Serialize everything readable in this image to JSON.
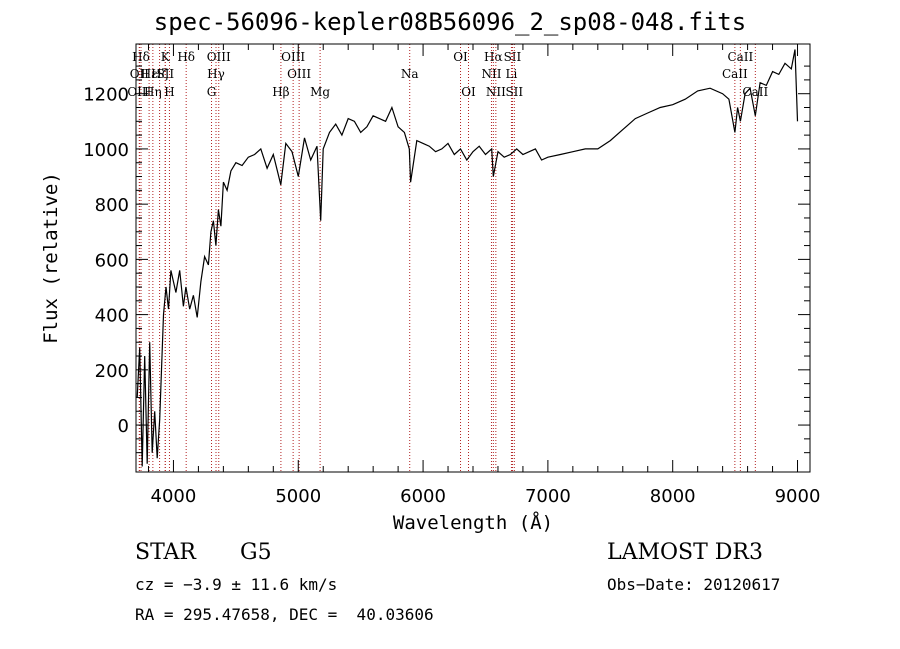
{
  "chart_data": {
    "type": "line",
    "title": "spec-56096-kepler08B56096_2_sp08-048.fits",
    "xlabel": "Wavelength (Å)",
    "ylabel": "Flux (relative)",
    "xlim": [
      3700,
      9100
    ],
    "ylim": [
      -170,
      1380
    ],
    "xticks": [
      4000,
      5000,
      6000,
      7000,
      8000,
      9000
    ],
    "yticks": [
      0,
      200,
      400,
      600,
      800,
      1000,
      1200
    ],
    "series": [
      {
        "name": "flux",
        "x": [
          3710,
          3730,
          3750,
          3770,
          3790,
          3810,
          3830,
          3850,
          3870,
          3890,
          3900,
          3920,
          3940,
          3960,
          3980,
          4000,
          4020,
          4050,
          4080,
          4100,
          4130,
          4160,
          4190,
          4220,
          4250,
          4280,
          4300,
          4320,
          4340,
          4360,
          4380,
          4400,
          4430,
          4460,
          4500,
          4550,
          4600,
          4650,
          4700,
          4750,
          4800,
          4860,
          4900,
          4950,
          5000,
          5050,
          5100,
          5150,
          5180,
          5200,
          5250,
          5300,
          5350,
          5400,
          5450,
          5500,
          5550,
          5600,
          5650,
          5700,
          5750,
          5800,
          5850,
          5890,
          5900,
          5950,
          6000,
          6050,
          6100,
          6150,
          6200,
          6250,
          6300,
          6350,
          6400,
          6450,
          6500,
          6550,
          6563,
          6600,
          6650,
          6700,
          6750,
          6800,
          6850,
          6900,
          6950,
          7000,
          7100,
          7200,
          7300,
          7400,
          7500,
          7600,
          7700,
          7800,
          7900,
          8000,
          8100,
          8200,
          8300,
          8400,
          8450,
          8498,
          8520,
          8542,
          8580,
          8620,
          8662,
          8700,
          8750,
          8800,
          8850,
          8900,
          8950,
          8980,
          9000
        ],
        "values": [
          100,
          280,
          -150,
          250,
          -140,
          300,
          -100,
          50,
          -120,
          20,
          150,
          400,
          500,
          420,
          560,
          520,
          480,
          560,
          430,
          500,
          420,
          470,
          390,
          520,
          610,
          580,
          700,
          740,
          650,
          780,
          720,
          880,
          850,
          920,
          950,
          940,
          970,
          980,
          1000,
          930,
          980,
          870,
          1020,
          990,
          900,
          1040,
          960,
          1010,
          740,
          1000,
          1060,
          1090,
          1050,
          1110,
          1100,
          1060,
          1080,
          1120,
          1110,
          1100,
          1150,
          1080,
          1060,
          1000,
          880,
          1030,
          1020,
          1010,
          990,
          1000,
          1020,
          980,
          1000,
          960,
          990,
          1010,
          980,
          1000,
          900,
          990,
          970,
          980,
          1000,
          980,
          990,
          1000,
          960,
          970,
          980,
          990,
          1000,
          1000,
          1030,
          1070,
          1110,
          1130,
          1150,
          1160,
          1180,
          1210,
          1220,
          1200,
          1180,
          1060,
          1150,
          1100,
          1200,
          1220,
          1120,
          1240,
          1230,
          1280,
          1270,
          1310,
          1290,
          1360,
          1100
        ]
      }
    ],
    "lines": [
      {
        "label": "Hδ",
        "x": 3740,
        "row": 1
      },
      {
        "label": "OII",
        "x": 3727,
        "row": 2
      },
      {
        "label": "OIII",
        "x": 3727,
        "row": 3
      },
      {
        "label": "Hε",
        "x": 3805,
        "row": 2
      },
      {
        "label": "Hη",
        "x": 3835,
        "row": 3
      },
      {
        "label": "K",
        "x": 3934,
        "row": 1
      },
      {
        "label": "Hζ",
        "x": 3889,
        "row": 2
      },
      {
        "label": "SII",
        "x": 3935,
        "row": 2
      },
      {
        "label": "H",
        "x": 3968,
        "row": 3
      },
      {
        "label": "Hδ",
        "x": 4102,
        "row": 1
      },
      {
        "label": "OIII",
        "x": 4363,
        "row": 1
      },
      {
        "label": "Hγ",
        "x": 4341,
        "row": 2
      },
      {
        "label": "G",
        "x": 4305,
        "row": 3
      },
      {
        "label": "Hβ",
        "x": 4861,
        "row": 3
      },
      {
        "label": "OIII",
        "x": 4959,
        "row": 1
      },
      {
        "label": "OIII",
        "x": 5007,
        "row": 2
      },
      {
        "label": "Mg",
        "x": 5175,
        "row": 3
      },
      {
        "label": "Na",
        "x": 5893,
        "row": 2
      },
      {
        "label": "OI",
        "x": 6300,
        "row": 1
      },
      {
        "label": "OI",
        "x": 6364,
        "row": 3
      },
      {
        "label": "Hα",
        "x": 6563,
        "row": 1
      },
      {
        "label": "NII",
        "x": 6548,
        "row": 2
      },
      {
        "label": "NII",
        "x": 6583,
        "row": 3
      },
      {
        "label": "SII",
        "x": 6716,
        "row": 1
      },
      {
        "label": "Li",
        "x": 6708,
        "row": 2
      },
      {
        "label": "SII",
        "x": 6731,
        "row": 3
      },
      {
        "label": "CaII",
        "x": 8542,
        "row": 1
      },
      {
        "label": "CaII",
        "x": 8498,
        "row": 2
      },
      {
        "label": "CaII",
        "x": 8662,
        "row": 3
      }
    ],
    "line_color": "#b22222",
    "grid": false
  },
  "info": {
    "class": "STAR",
    "subclass": "G5",
    "survey": "LAMOST DR3",
    "cz": "cz = −3.9 ± 11.6 km/s",
    "obs_date": "Obs−Date: 20120617",
    "coords": "RA = 295.47658, DEC =  40.03606"
  }
}
